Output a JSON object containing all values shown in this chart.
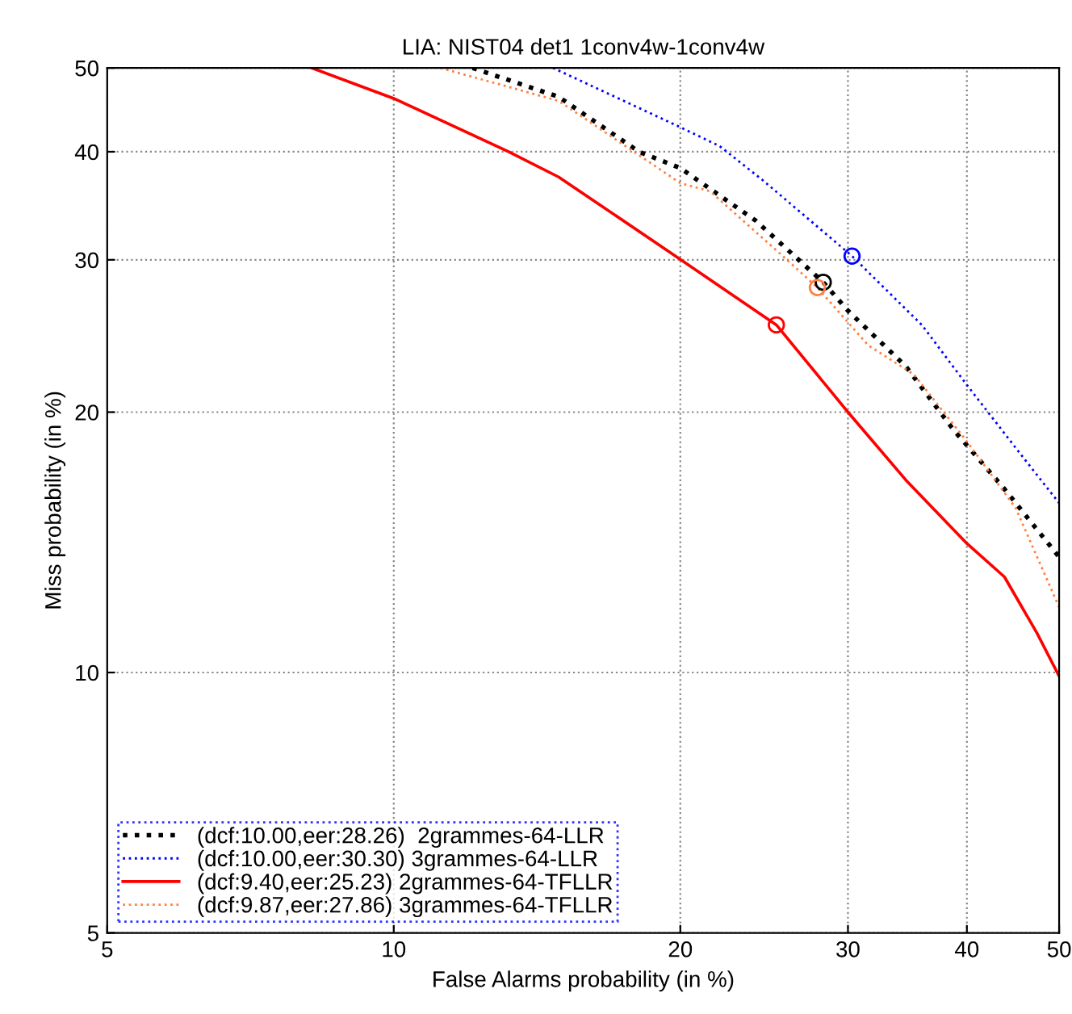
{
  "chart_data": {
    "type": "line",
    "title": "LIA: NIST04 det1 1conv4w-1conv4w",
    "xlabel": "False Alarms probability (in %)",
    "ylabel": "Miss probability (in %)",
    "xlim": [
      5,
      50
    ],
    "ylim": [
      5,
      50
    ],
    "xticks": [
      5,
      10,
      20,
      30,
      40,
      50
    ],
    "yticks": [
      5,
      10,
      20,
      30,
      40,
      50
    ],
    "grid": true,
    "legend": "bottom left",
    "log": "xy",
    "series": [
      {
        "name": "(dcf:10.00,eer:28.26)  2grammes-64-LLR",
        "color": "#000000",
        "line_style": "dotted",
        "marker": "none",
        "x": [
          12.1,
          14.9,
          18.1,
          20,
          24.0,
          28.26,
          30,
          34.5,
          38.7,
          43.8,
          50
        ],
        "values": [
          50,
          46.3,
          40,
          38.3,
          33.3,
          28.26,
          26.2,
          22.6,
          19.1,
          16.3,
          13.6
        ]
      },
      {
        "name": "(dcf:10.00,eer:30.30) 3grammes-64-LLR",
        "color": "#0000ff",
        "line_style": "dotted",
        "marker": "none",
        "x": [
          14.7,
          20,
          22.0,
          24.4,
          30.3,
          35.9,
          40,
          45.7,
          50
        ],
        "values": [
          50,
          42.7,
          40.6,
          37.1,
          30.3,
          25.2,
          21.5,
          17.8,
          15.7
        ]
      },
      {
        "name": "(dcf:9.40,eer:25.23) 2grammes-64-TFLLR",
        "color": "#ff0000",
        "line_style": "solid",
        "marker": "none",
        "x": [
          8.2,
          10,
          13.2,
          14.9,
          19.6,
          25.23,
          30,
          34.5,
          40,
          43.8,
          47.4,
          50
        ],
        "values": [
          50,
          46.1,
          40,
          37.4,
          30.5,
          25.23,
          20,
          16.7,
          14.1,
          12.9,
          11.1,
          9.9
        ]
      },
      {
        "name": "(dcf:9.87,eer:27.86) 3grammes-64-TFLLR",
        "color": "#ff8040",
        "line_style": "dotted",
        "marker": "none",
        "x": [
          11.2,
          14.9,
          20,
          21.5,
          25.8,
          27.86,
          31.5,
          35.2,
          40,
          45.0,
          50
        ],
        "values": [
          50,
          45.8,
          36.8,
          36.0,
          30.1,
          27.86,
          23.9,
          22.1,
          18.5,
          15.5,
          11.9
        ]
      },
      {
        "type": "scatter",
        "color": "#000000",
        "marker": "circle",
        "x": [
          28.26
        ],
        "values": [
          28.26
        ]
      },
      {
        "type": "scatter",
        "color": "#0000ff",
        "marker": "circle",
        "x": [
          30.3
        ],
        "values": [
          30.3
        ]
      },
      {
        "type": "scatter",
        "color": "#ff0000",
        "marker": "circle",
        "x": [
          25.23
        ],
        "values": [
          25.23
        ]
      },
      {
        "type": "scatter",
        "color": "#ff8040",
        "marker": "circle",
        "x": [
          27.86
        ],
        "values": [
          27.86
        ]
      }
    ]
  }
}
